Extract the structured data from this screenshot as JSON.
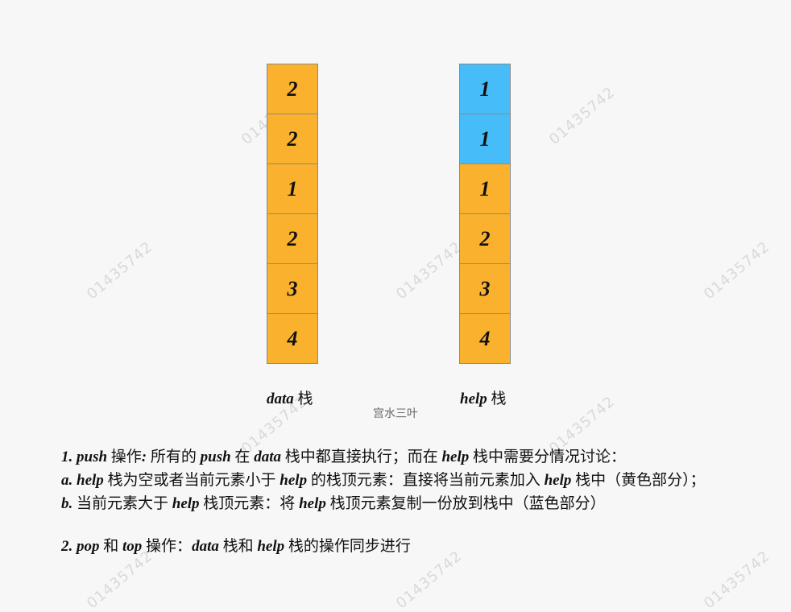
{
  "data_stack": {
    "label_name": "data",
    "label_suffix": " 栈",
    "cells": [
      {
        "value": "2",
        "color": "#f9b12e"
      },
      {
        "value": "2",
        "color": "#f9b12e"
      },
      {
        "value": "1",
        "color": "#f9b12e"
      },
      {
        "value": "2",
        "color": "#f9b12e"
      },
      {
        "value": "3",
        "color": "#f9b12e"
      },
      {
        "value": "4",
        "color": "#f9b12e"
      }
    ]
  },
  "help_stack": {
    "label_name": "help",
    "label_suffix": " 栈",
    "cells": [
      {
        "value": "1",
        "color": "#46bdf8"
      },
      {
        "value": "1",
        "color": "#46bdf8"
      },
      {
        "value": "1",
        "color": "#f9b12e"
      },
      {
        "value": "2",
        "color": "#f9b12e"
      },
      {
        "value": "3",
        "color": "#f9b12e"
      },
      {
        "value": "4",
        "color": "#f9b12e"
      }
    ]
  },
  "credit": "宫水三叶",
  "watermark": "01435742",
  "notes": {
    "line1": [
      {
        "t": "1. push",
        "i": true
      },
      {
        "t": " 操作",
        "i": false
      },
      {
        "t": ":",
        "i": true
      },
      {
        "t": " 所有的 ",
        "i": false
      },
      {
        "t": "push",
        "i": true
      },
      {
        "t": " 在 ",
        "i": false
      },
      {
        "t": "data",
        "i": true
      },
      {
        "t": " 栈中都直接执行；而在 ",
        "i": false
      },
      {
        "t": "help",
        "i": true
      },
      {
        "t": " 栈中需要分情况讨论：",
        "i": false
      }
    ],
    "line2": [
      {
        "t": "a. help",
        "i": true
      },
      {
        "t": " 栈为空或者当前元素小于 ",
        "i": false
      },
      {
        "t": "help",
        "i": true
      },
      {
        "t": " 的栈顶元素：直接将当前元素加入 ",
        "i": false
      },
      {
        "t": "help",
        "i": true
      },
      {
        "t": " 栈中（黄色部分）；",
        "i": false
      }
    ],
    "line3": [
      {
        "t": "b.",
        "i": true
      },
      {
        "t": " 当前元素大于 ",
        "i": false
      },
      {
        "t": "help",
        "i": true
      },
      {
        "t": " 栈顶元素：将 ",
        "i": false
      },
      {
        "t": "help",
        "i": true
      },
      {
        "t": " 栈顶元素复制一份放到栈中（蓝色部分）",
        "i": false
      }
    ],
    "line4": [
      {
        "t": "2. pop",
        "i": true
      },
      {
        "t": " 和 ",
        "i": false
      },
      {
        "t": "top",
        "i": true
      },
      {
        "t": " 操作：",
        "i": false
      },
      {
        "t": "data",
        "i": true
      },
      {
        "t": " 栈和 ",
        "i": false
      },
      {
        "t": "help",
        "i": true
      },
      {
        "t": " 栈的操作同步进行",
        "i": false
      }
    ]
  }
}
